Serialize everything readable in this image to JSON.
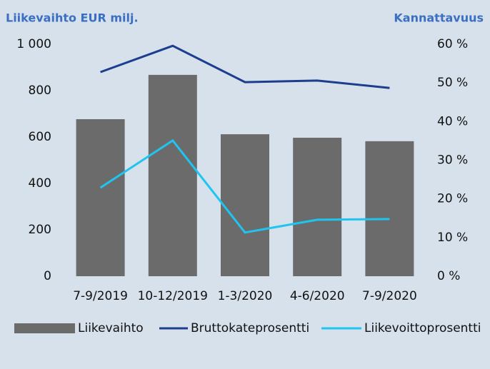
{
  "chart_data": {
    "type": "bar",
    "y_title": "Liikevaihto EUR milj.",
    "y2_title": "Kannattavuus",
    "categories": [
      "7-9/2019",
      "10-12/2019",
      "1-3/2020",
      "4-6/2020",
      "7-9/2020"
    ],
    "series": [
      {
        "name": "Liikevaihto",
        "type": "bar",
        "color": "#6b6b6b",
        "values": [
          677,
          868,
          612,
          597,
          582
        ]
      },
      {
        "name": "Bruttokateprosentti",
        "type": "line",
        "axis": "y2",
        "color": "#1b3f8e",
        "values": [
          52.8,
          59.6,
          50.2,
          50.6,
          48.7
        ]
      },
      {
        "name": "Liikevoittoprosentti",
        "type": "line",
        "axis": "y2",
        "color": "#1fc5f0",
        "values": [
          22.9,
          35.1,
          11.3,
          14.6,
          14.8
        ]
      }
    ],
    "ylim": [
      0,
      1000
    ],
    "yticks": [
      0,
      200,
      400,
      600,
      800,
      {
        "value": 1000,
        "label": "1 000"
      }
    ],
    "y2lim": [
      0,
      60
    ],
    "y2ticks": [
      {
        "value": 0,
        "label": "0 %"
      },
      {
        "value": 10,
        "label": "10 %"
      },
      {
        "value": 20,
        "label": "20 %"
      },
      {
        "value": 30,
        "label": "30 %"
      },
      {
        "value": 40,
        "label": "40 %"
      },
      {
        "value": 50,
        "label": "50 %"
      },
      {
        "value": 60,
        "label": "60 %"
      }
    ],
    "grid": false,
    "legend": "bottom"
  }
}
